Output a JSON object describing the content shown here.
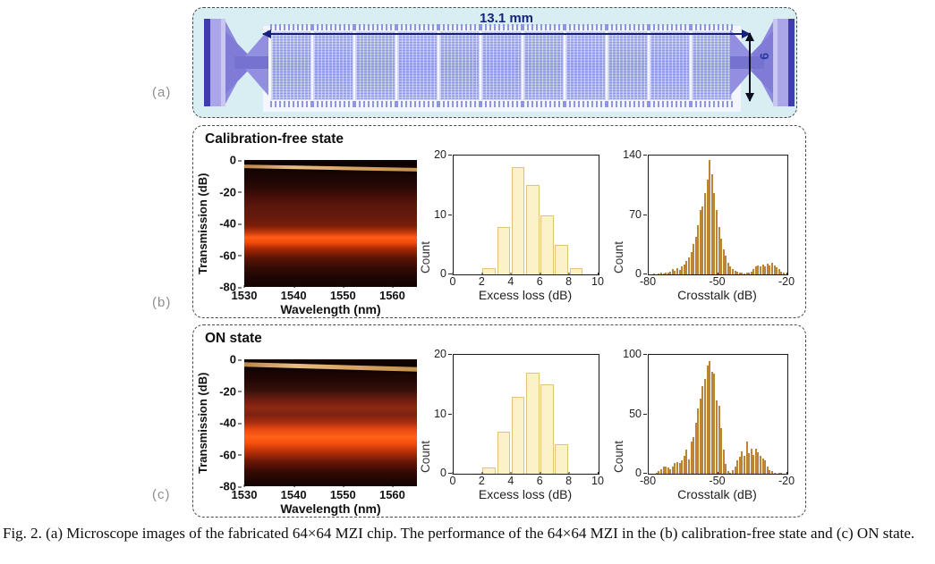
{
  "figure": {
    "panel_a": {
      "label": "(a)",
      "length_label": "13.1 mm",
      "height_label": "6",
      "block_count": 11
    },
    "panel_b": {
      "label": "(b)",
      "title": "Calibration-free state"
    },
    "panel_c": {
      "label": "(c)",
      "title": "ON state"
    },
    "caption": "Fig. 2. (a) Microscope images of the fabricated 64×64 MZI chip. The performance of the 64×64 MZI in the (b) calibration-free state and (c) ON state."
  },
  "colors": {
    "chip_background": "#d9eef3",
    "chip_block": "#a3aee8",
    "dimension_annotation": "#16247e",
    "excess_bar_fill": "#fbf2c8",
    "excess_bar_border": "#e3c27a",
    "crosstalk_bar_fill": "#f6e3ae",
    "crosstalk_bar_border": "#be8435",
    "spectrum_bright_band": "#ff5c16",
    "spectrum_top_line": "#e8bd82"
  },
  "chart_data": [
    {
      "id": "spectrum_calibration_free",
      "type": "heatmap",
      "title": "",
      "xlabel": "Wavelength (nm)",
      "ylabel": "Transmission (dB)",
      "xlim": [
        1530,
        1565
      ],
      "ylim": [
        -80,
        0
      ],
      "xticks": [
        1530,
        1540,
        1550,
        1560
      ],
      "yticks": [
        0,
        -20,
        -40,
        -60,
        -80
      ],
      "annotations": [
        "bright input reference trace near 0 dB sloping to -8 dB",
        "dark band -10 to -25 dB",
        "diffuse dark-red band -25 to -42 dB",
        "bright red output band centered near -48 dB",
        "fading to black toward -80 dB"
      ]
    },
    {
      "id": "excess_loss_calibration_free",
      "type": "bar",
      "xlabel": "Excess loss (dB)",
      "ylabel": "Count",
      "xlim": [
        0,
        10
      ],
      "ylim": [
        0,
        20
      ],
      "xticks": [
        0,
        2,
        4,
        6,
        8,
        10
      ],
      "yticks": [
        0,
        10,
        20
      ],
      "bin_start": 2,
      "bin_width": 1,
      "bar_frac": 0.9,
      "bar_color": "#fbf2c8",
      "bar_border": "#e3c27a",
      "values": [
        1,
        8,
        18,
        15,
        10,
        5,
        1
      ]
    },
    {
      "id": "crosstalk_calibration_free",
      "type": "bar",
      "xlabel": "Crosstalk (dB)",
      "ylabel": "Count",
      "xlim": [
        -80,
        -20
      ],
      "ylim": [
        0,
        140
      ],
      "xticks": [
        -80,
        -50,
        -20
      ],
      "yticks": [
        0,
        70,
        140
      ],
      "bin_start": -78,
      "bin_width": 1,
      "bar_frac": 0.55,
      "bar_color": "#f6e3ae",
      "bar_border": "#be8435",
      "values": [
        1,
        0,
        1,
        2,
        1,
        2,
        2,
        3,
        6,
        4,
        7,
        5,
        9,
        12,
        16,
        20,
        26,
        36,
        44,
        58,
        76,
        80,
        96,
        112,
        135,
        118,
        96,
        76,
        56,
        42,
        30,
        22,
        14,
        9,
        6,
        4,
        3,
        2,
        2,
        1,
        2,
        2,
        3,
        6,
        9,
        11,
        9,
        12,
        10,
        13,
        11,
        14,
        11,
        8,
        6,
        3,
        2
      ]
    },
    {
      "id": "spectrum_on_state",
      "type": "heatmap",
      "title": "",
      "xlabel": "Wavelength (nm)",
      "ylabel": "Transmission (dB)",
      "xlim": [
        1530,
        1565
      ],
      "ylim": [
        -80,
        0
      ],
      "xticks": [
        1530,
        1540,
        1550,
        1560
      ],
      "yticks": [
        0,
        -20,
        -40,
        -60,
        -80
      ],
      "annotations": [
        "bright input reference trace near 0 dB sloping to -10 dB",
        "dark band -12 to -28 dB",
        "red band -30 to -42 dB",
        "wide bright red output band centered near -50 dB",
        "fading to black toward -80 dB"
      ]
    },
    {
      "id": "excess_loss_on_state",
      "type": "bar",
      "xlabel": "Excess loss (dB)",
      "ylabel": "Count",
      "xlim": [
        0,
        10
      ],
      "ylim": [
        0,
        20
      ],
      "xticks": [
        0,
        2,
        4,
        6,
        8,
        10
      ],
      "yticks": [
        0,
        10,
        20
      ],
      "bin_start": 2,
      "bin_width": 1,
      "bar_frac": 0.9,
      "bar_color": "#fbf2c8",
      "bar_border": "#e3c27a",
      "values": [
        1,
        7,
        13,
        17,
        15,
        5
      ]
    },
    {
      "id": "crosstalk_on_state",
      "type": "bar",
      "xlabel": "Crosstalk (dB)",
      "ylabel": "Count",
      "xlim": [
        -80,
        -20
      ],
      "ylim": [
        0,
        100
      ],
      "xticks": [
        -80,
        -50,
        -20
      ],
      "yticks": [
        0,
        50,
        100
      ],
      "bin_start": -77,
      "bin_width": 1,
      "bar_frac": 0.55,
      "bar_color": "#f6e3ae",
      "bar_border": "#be8435",
      "values": [
        1,
        2,
        4,
        6,
        6,
        5,
        4,
        6,
        9,
        10,
        9,
        11,
        15,
        20,
        12,
        27,
        31,
        43,
        55,
        63,
        74,
        80,
        91,
        95,
        86,
        84,
        62,
        57,
        38,
        20,
        8,
        2,
        1,
        3,
        6,
        11,
        14,
        19,
        15,
        27,
        17,
        21,
        16,
        21,
        18,
        15,
        13,
        11,
        6,
        3,
        2,
        1,
        0,
        1,
        1
      ]
    }
  ]
}
